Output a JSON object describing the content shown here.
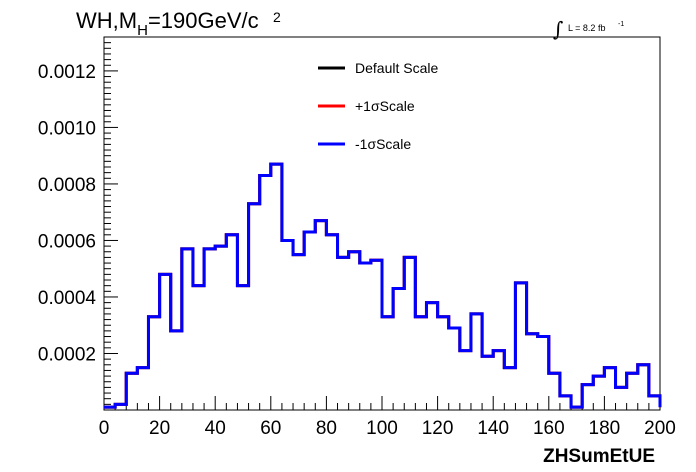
{
  "chart_data": {
    "type": "line",
    "style": "step-histogram",
    "title_main": "WH,M",
    "title_sub": "H",
    "title_rest": "=190GeV/c",
    "title_sup": "2",
    "lumi_text": "L = 8.2 fb",
    "lumi_sup": "-1",
    "xlabel": "ZHSumEtUE",
    "ylabel": "",
    "xlim": [
      0,
      200
    ],
    "ylim": [
      0,
      0.00132
    ],
    "x_ticks": [
      0,
      20,
      40,
      60,
      80,
      100,
      120,
      140,
      160,
      180,
      200
    ],
    "x_tick_labels": [
      "0",
      "20",
      "40",
      "60",
      "80",
      "100",
      "120",
      "140",
      "160",
      "180",
      "200"
    ],
    "y_ticks": [
      0.0002,
      0.0004,
      0.0006,
      0.0008,
      0.001,
      0.0012
    ],
    "y_tick_labels": [
      "0.0002",
      "0.0004",
      "0.0006",
      "0.0008",
      "0.0010",
      "0.0012"
    ],
    "bin_width": 4,
    "bin_edges_start": 0,
    "legend_position": "top-center",
    "series": [
      {
        "name": "Default Scale",
        "color": "#000000",
        "values": [
          1e-05,
          2e-05,
          0.00013,
          0.00015,
          0.00033,
          0.00048,
          0.00028,
          0.00057,
          0.00044,
          0.00057,
          0.00058,
          0.00062,
          0.00044,
          0.00073,
          0.00083,
          0.00087,
          0.0006,
          0.00055,
          0.00063,
          0.00067,
          0.00062,
          0.00054,
          0.00056,
          0.00052,
          0.00053,
          0.00033,
          0.00043,
          0.00054,
          0.00033,
          0.00038,
          0.00033,
          0.00029,
          0.00021,
          0.00034,
          0.00019,
          0.00021,
          0.00015,
          0.00045,
          0.00027,
          0.00026,
          0.00013,
          5e-05,
          1e-05,
          9e-05,
          0.00012,
          0.00015,
          8e-05,
          0.00013,
          0.00016,
          5e-05,
          1e-05
        ]
      },
      {
        "name": "+1σScale",
        "color": "#ff0000",
        "values": [
          1e-05,
          2e-05,
          0.00013,
          0.00015,
          0.00033,
          0.00048,
          0.00028,
          0.00057,
          0.00044,
          0.00057,
          0.00058,
          0.00062,
          0.00044,
          0.00073,
          0.00083,
          0.00087,
          0.0006,
          0.00055,
          0.00063,
          0.00067,
          0.00062,
          0.00054,
          0.00056,
          0.00052,
          0.00053,
          0.00033,
          0.00043,
          0.00054,
          0.00033,
          0.00038,
          0.00033,
          0.00029,
          0.00021,
          0.00034,
          0.00019,
          0.00021,
          0.00015,
          0.00045,
          0.00027,
          0.00026,
          0.00013,
          5e-05,
          1e-05,
          9e-05,
          0.00012,
          0.00015,
          8e-05,
          0.00013,
          0.00016,
          5e-05,
          1e-05
        ]
      },
      {
        "name": "-1σScale",
        "color": "#0000ff",
        "values": [
          1e-05,
          2e-05,
          0.00013,
          0.00015,
          0.00033,
          0.00048,
          0.00028,
          0.00057,
          0.00044,
          0.00057,
          0.00058,
          0.00062,
          0.00044,
          0.00073,
          0.00083,
          0.00087,
          0.0006,
          0.00055,
          0.00063,
          0.00067,
          0.00062,
          0.00054,
          0.00056,
          0.00052,
          0.00053,
          0.00033,
          0.00043,
          0.00054,
          0.00033,
          0.00038,
          0.00033,
          0.00029,
          0.00021,
          0.00034,
          0.00019,
          0.00021,
          0.00015,
          0.00045,
          0.00027,
          0.00026,
          0.00013,
          5e-05,
          1e-05,
          9e-05,
          0.00012,
          0.00015,
          8e-05,
          0.00013,
          0.00016,
          5e-05,
          1e-05
        ]
      }
    ]
  }
}
